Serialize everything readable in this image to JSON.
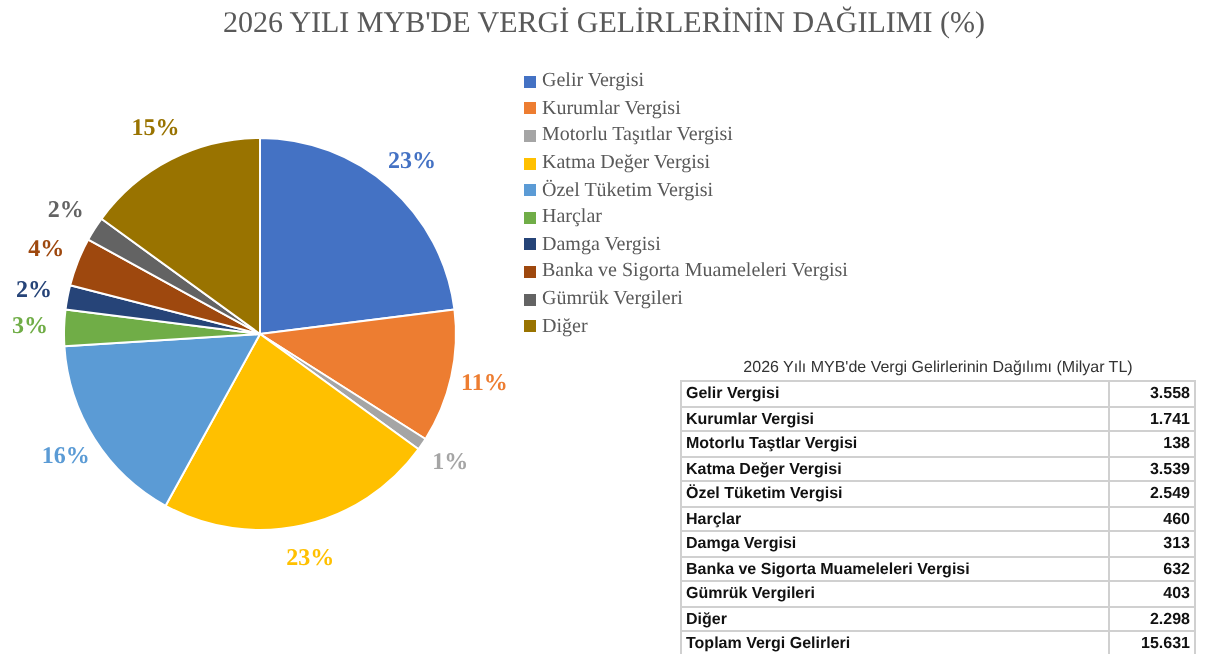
{
  "chart_data": [
    {
      "type": "pie",
      "title": "2026 YILI MYB'DE VERGİ GELİRLERİNİN DAĞILIMI (%)",
      "legend": "right",
      "categories": [
        "Gelir Vergisi",
        "Kurumlar Vergisi",
        "Motorlu Taşıtlar Vergisi",
        "Katma Değer Vergisi",
        "Özel Tüketim Vergisi",
        "Harçlar",
        "Damga Vergisi",
        "Banka ve Sigorta Muameleleri Vergisi",
        "Gümrük Vergileri",
        "Diğer"
      ],
      "values": [
        23,
        11,
        1,
        23,
        16,
        3,
        2,
        4,
        2,
        15
      ],
      "value_labels": [
        "23%",
        "11%",
        "1%",
        "23%",
        "16%",
        "3%",
        "2%",
        "4%",
        "2%",
        "15%"
      ],
      "colors": [
        "#4472c4",
        "#ed7d31",
        "#a5a5a5",
        "#ffc000",
        "#5b9bd5",
        "#70ad47",
        "#264478",
        "#9e480e",
        "#636363",
        "#997300"
      ]
    },
    {
      "type": "other",
      "title": "2026 Yılı MYB'de Vergi Gelirlerinin Dağılımı (Milyar TL)",
      "categories": [
        "Gelir Vergisi",
        "Kurumlar Vergisi",
        "Motorlu Taştlar Vergisi",
        "Katma Değer Vergisi",
        "Özel Tüketim Vergisi",
        "Harçlar",
        "Damga Vergisi",
        "Banka ve Sigorta Muameleleri Vergisi",
        "Gümrük Vergileri",
        "Diğer",
        "Toplam Vergi Gelirleri"
      ],
      "value_labels": [
        "3.558",
        "1.741",
        "138",
        "3.539",
        "2.549",
        "460",
        "313",
        "632",
        "403",
        "2.298",
        "15.631"
      ]
    }
  ]
}
